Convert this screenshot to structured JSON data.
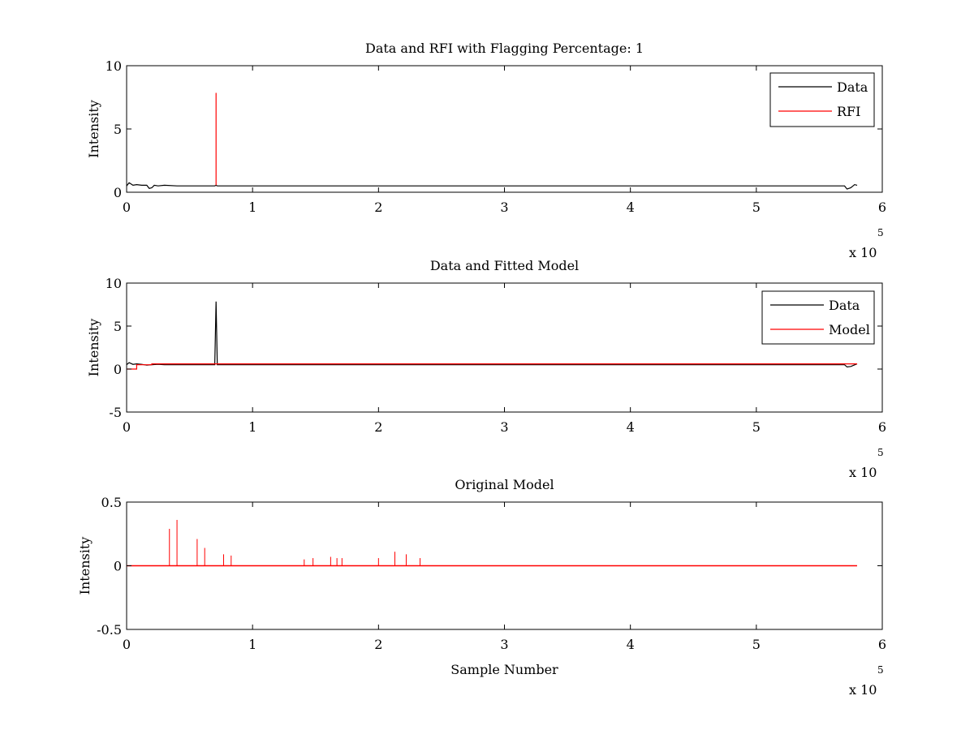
{
  "chart_data": [
    {
      "type": "line",
      "title": "Data and RFI with Flagging Percentage: 1",
      "xlabel": "",
      "ylabel": "Intensity",
      "xlim": [
        0,
        6
      ],
      "ylim": [
        0,
        10
      ],
      "x_exponent_label": "x 10",
      "x_exponent": "5",
      "x_ticks": [
        0,
        1,
        2,
        3,
        4,
        5,
        6
      ],
      "y_ticks": [
        0,
        5,
        10
      ],
      "legend_position": "top-right",
      "series": [
        {
          "name": "Data",
          "color": "#000000",
          "x": [
            0,
            0.02,
            0.05,
            0.08,
            0.12,
            0.16,
            0.18,
            0.2,
            0.22,
            0.25,
            0.3,
            0.4,
            0.6,
            0.7,
            0.71,
            0.72,
            0.8,
            1.0,
            1.5,
            2.0,
            3.0,
            4.0,
            5.0,
            5.6,
            5.7,
            5.72,
            5.75,
            5.78,
            5.8
          ],
          "y": [
            0.5,
            0.75,
            0.55,
            0.6,
            0.55,
            0.55,
            0.3,
            0.35,
            0.55,
            0.5,
            0.55,
            0.5,
            0.5,
            0.5,
            0.55,
            0.5,
            0.5,
            0.5,
            0.5,
            0.5,
            0.5,
            0.5,
            0.5,
            0.5,
            0.5,
            0.25,
            0.35,
            0.6,
            0.55
          ]
        },
        {
          "name": "RFI",
          "color": "#ff0000",
          "x": [
            0.71,
            0.71
          ],
          "y": [
            0.55,
            7.85
          ]
        }
      ]
    },
    {
      "type": "line",
      "title": "Data and Fitted Model",
      "xlabel": "",
      "ylabel": "Intensity",
      "xlim": [
        0,
        6
      ],
      "ylim": [
        -5,
        10
      ],
      "x_exponent_label": "x 10",
      "x_exponent": "5",
      "x_ticks": [
        0,
        1,
        2,
        3,
        4,
        5,
        6
      ],
      "y_ticks": [
        -5,
        0,
        5,
        10
      ],
      "legend_position": "top-right",
      "series": [
        {
          "name": "Data",
          "color": "#000000",
          "x": [
            0,
            0.02,
            0.05,
            0.08,
            0.12,
            0.16,
            0.2,
            0.25,
            0.3,
            0.5,
            0.7,
            0.71,
            0.72,
            0.8,
            1.0,
            2.0,
            3.0,
            4.0,
            5.0,
            5.6,
            5.7,
            5.72,
            5.75,
            5.8
          ],
          "y": [
            0.5,
            0.75,
            0.55,
            0.6,
            0.55,
            0.45,
            0.5,
            0.55,
            0.5,
            0.5,
            0.5,
            7.85,
            0.5,
            0.5,
            0.5,
            0.5,
            0.5,
            0.5,
            0.5,
            0.5,
            0.5,
            0.25,
            0.3,
            0.6
          ]
        },
        {
          "name": "Model",
          "color": "#ff0000",
          "x": [
            0,
            0.08,
            0.08,
            0.2,
            0.2,
            1.0,
            2.0,
            3.0,
            4.0,
            5.0,
            5.8
          ],
          "y": [
            0.0,
            0.0,
            0.5,
            0.5,
            0.6,
            0.6,
            0.6,
            0.6,
            0.6,
            0.6,
            0.6
          ]
        }
      ]
    },
    {
      "type": "line",
      "title": "Original Model",
      "xlabel": "Sample Number",
      "ylabel": "Intensity",
      "xlim": [
        0,
        6
      ],
      "ylim": [
        -0.5,
        0.5
      ],
      "x_exponent_label": "x 10",
      "x_exponent": "5",
      "x_ticks": [
        0,
        1,
        2,
        3,
        4,
        5,
        6
      ],
      "y_ticks": [
        -0.5,
        0,
        0.5
      ],
      "series": [
        {
          "color": "#ff0000",
          "baseline": 0.0,
          "x_start": 0.0,
          "x_end": 5.8,
          "spikes_x": [
            0.34,
            0.4,
            0.56,
            0.62,
            0.77,
            0.83,
            1.41,
            1.48,
            1.62,
            1.67,
            1.71,
            2.0,
            2.13,
            2.22,
            2.33
          ],
          "spikes_y": [
            0.29,
            0.36,
            0.21,
            0.14,
            0.09,
            0.08,
            0.05,
            0.06,
            0.07,
            0.06,
            0.06,
            0.06,
            0.11,
            0.09,
            0.06
          ]
        }
      ]
    }
  ]
}
